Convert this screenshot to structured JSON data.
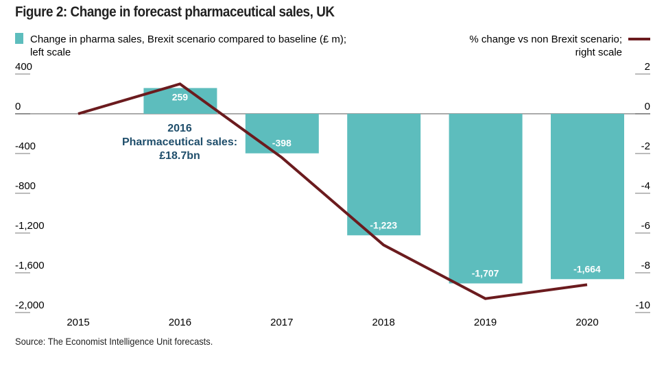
{
  "chart_data": {
    "type": "bar+line",
    "title": "Figure 2: Change in forecast pharmaceutical sales, UK",
    "categories": [
      "2015",
      "2016",
      "2017",
      "2018",
      "2019",
      "2020"
    ],
    "series": [
      {
        "name": "Change in pharma sales, Brexit scenario compared to baseline (£ m); left scale",
        "type": "bar",
        "axis": "left",
        "color": "#5dbdbd",
        "values": [
          null,
          259,
          -398,
          -1223,
          -1707,
          -1664
        ],
        "labels": [
          "",
          "259",
          "-398",
          "-1,223",
          "-1,707",
          "-1,664"
        ]
      },
      {
        "name": "% change vs non Brexit scenario; right scale",
        "type": "line",
        "axis": "right",
        "color": "#6b1b1e",
        "values": [
          0,
          1.5,
          -2.2,
          -6.6,
          -9.3,
          -8.6
        ]
      }
    ],
    "legend_left": [
      "Change in pharma sales, Brexit scenario compared to baseline (£ m);",
      "left scale"
    ],
    "legend_right": [
      "% change vs non Brexit scenario;",
      "right scale"
    ],
    "left_axis": {
      "ylim": [
        -2000,
        400
      ],
      "ticks": [
        400,
        0,
        -400,
        -800,
        -1200,
        -1600,
        -2000
      ],
      "tick_labels": [
        "400",
        "0",
        "-400",
        "-800",
        "-1,200",
        "-1,600",
        "-2,000"
      ]
    },
    "right_axis": {
      "ylim": [
        -10,
        2
      ],
      "ticks": [
        2,
        0,
        -2,
        -4,
        -6,
        -8,
        -10
      ],
      "tick_labels": [
        "2",
        "0",
        "-2",
        "-4",
        "-6",
        "-8",
        "-10"
      ]
    },
    "annotation": [
      "2016",
      "Pharmaceutical sales:",
      "£18.7bn"
    ],
    "annotation_color": "#1f4e6b",
    "source": "Source: The Economist Intelligence Unit forecasts."
  }
}
